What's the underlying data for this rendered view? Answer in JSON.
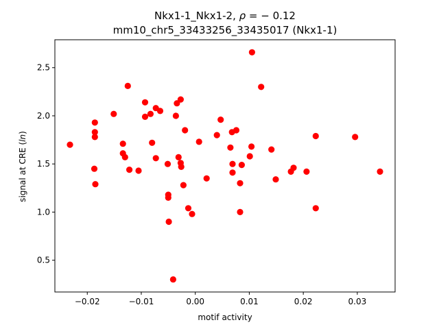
{
  "chart_data": {
    "type": "scatter",
    "title_line1_prefix": "Nkx1-1_Nkx1-2, ",
    "title_rho_symbol": "ρ",
    "title_rho_value": " = − 0.12",
    "title_line2": "mm10_chr5_33433256_33435017 (Nkx1-1)",
    "xlabel": "motif activity",
    "ylabel_prefix": "signal at CRE (",
    "ylabel_italic": "ln",
    "ylabel_suffix": ")",
    "xlim": [
      -0.026,
      0.037
    ],
    "ylim": [
      0.17,
      2.79
    ],
    "x_ticks": [
      -0.02,
      -0.01,
      0.0,
      0.01,
      0.02,
      0.03
    ],
    "x_tick_labels": [
      "−0.02",
      "−0.01",
      "0.00",
      "0.01",
      "0.02",
      "0.03"
    ],
    "y_ticks": [
      0.5,
      1.0,
      1.5,
      2.0,
      2.5
    ],
    "y_tick_labels": [
      "0.5",
      "1.0",
      "1.5",
      "2.0",
      "2.5"
    ],
    "grid": false,
    "marker_color": "#ff0000",
    "points": [
      {
        "x": -0.0232,
        "y": 1.7
      },
      {
        "x": -0.0186,
        "y": 1.93
      },
      {
        "x": -0.0186,
        "y": 1.83
      },
      {
        "x": -0.0186,
        "y": 1.78
      },
      {
        "x": -0.0187,
        "y": 1.45
      },
      {
        "x": -0.0185,
        "y": 1.29
      },
      {
        "x": -0.0151,
        "y": 2.02
      },
      {
        "x": -0.0134,
        "y": 1.71
      },
      {
        "x": -0.0134,
        "y": 1.61
      },
      {
        "x": -0.013,
        "y": 1.57
      },
      {
        "x": -0.0125,
        "y": 2.31
      },
      {
        "x": -0.0122,
        "y": 1.44
      },
      {
        "x": -0.0105,
        "y": 1.43
      },
      {
        "x": -0.0093,
        "y": 2.14
      },
      {
        "x": -0.0093,
        "y": 1.99
      },
      {
        "x": -0.0083,
        "y": 2.02
      },
      {
        "x": -0.008,
        "y": 1.72
      },
      {
        "x": -0.0073,
        "y": 2.08
      },
      {
        "x": -0.0073,
        "y": 1.56
      },
      {
        "x": -0.0065,
        "y": 2.05
      },
      {
        "x": -0.0051,
        "y": 1.5
      },
      {
        "x": -0.005,
        "y": 1.18
      },
      {
        "x": -0.005,
        "y": 1.15
      },
      {
        "x": -0.0049,
        "y": 0.9
      },
      {
        "x": -0.0041,
        "y": 0.3
      },
      {
        "x": -0.0036,
        "y": 2.0
      },
      {
        "x": -0.0034,
        "y": 2.13
      },
      {
        "x": -0.0031,
        "y": 1.57
      },
      {
        "x": -0.0027,
        "y": 2.17
      },
      {
        "x": -0.0027,
        "y": 1.51
      },
      {
        "x": -0.0026,
        "y": 1.47
      },
      {
        "x": -0.0022,
        "y": 1.28
      },
      {
        "x": -0.0019,
        "y": 1.85
      },
      {
        "x": -0.0013,
        "y": 1.04
      },
      {
        "x": -0.0006,
        "y": 0.98
      },
      {
        "x": 0.0007,
        "y": 1.73
      },
      {
        "x": 0.0021,
        "y": 1.35
      },
      {
        "x": 0.004,
        "y": 1.8
      },
      {
        "x": 0.0047,
        "y": 1.96
      },
      {
        "x": 0.0065,
        "y": 1.67
      },
      {
        "x": 0.0068,
        "y": 1.83
      },
      {
        "x": 0.0069,
        "y": 1.5
      },
      {
        "x": 0.0069,
        "y": 1.41
      },
      {
        "x": 0.0076,
        "y": 1.85
      },
      {
        "x": 0.0083,
        "y": 1.3
      },
      {
        "x": 0.0083,
        "y": 1.0
      },
      {
        "x": 0.0086,
        "y": 1.49
      },
      {
        "x": 0.0101,
        "y": 1.58
      },
      {
        "x": 0.0105,
        "y": 2.66
      },
      {
        "x": 0.0104,
        "y": 1.68
      },
      {
        "x": 0.0122,
        "y": 2.3
      },
      {
        "x": 0.0141,
        "y": 1.65
      },
      {
        "x": 0.0149,
        "y": 1.34
      },
      {
        "x": 0.0177,
        "y": 1.42
      },
      {
        "x": 0.0182,
        "y": 1.46
      },
      {
        "x": 0.0206,
        "y": 1.42
      },
      {
        "x": 0.0223,
        "y": 1.79
      },
      {
        "x": 0.0223,
        "y": 1.04
      },
      {
        "x": 0.0296,
        "y": 1.78
      },
      {
        "x": 0.0342,
        "y": 1.42
      }
    ]
  }
}
